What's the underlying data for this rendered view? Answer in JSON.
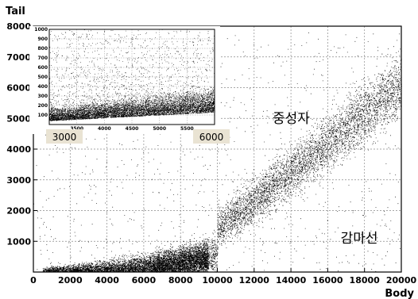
{
  "chart_data": [
    {
      "type": "scatter",
      "xlabel": "Body",
      "ylabel": "Tail",
      "xlim": [
        0,
        20000
      ],
      "ylim": [
        0,
        8000
      ],
      "x_ticks": [
        "0",
        "2000",
        "4000",
        "6000",
        "8000",
        "10000",
        "12000",
        "14000",
        "16000",
        "18000",
        "20000"
      ],
      "y_ticks": [
        "1000",
        "2000",
        "3000",
        "4000",
        "5000",
        "6000",
        "7000",
        "8000"
      ],
      "grid": true,
      "annotations": [
        {
          "text": "중성자",
          "x": 13000,
          "y": 4850
        },
        {
          "text": "감마선",
          "x": 16700,
          "y": 950
        }
      ],
      "range_labels": [
        {
          "text": "3000",
          "x": 3000
        },
        {
          "text": "6000",
          "x": 6000
        }
      ],
      "series": [
        {
          "label": "neutron band",
          "points": "x in [8000,20000], y ≈ 0.47*x - 3300 (from ~500 at 8000 to ~6000 at 20000)"
        },
        {
          "label": "gamma band",
          "points": "x in [0,9000], y ≈ 0.00001*(x-2000)^2 (from ~0 at 2000 to ~500 at 9000)"
        }
      ]
    },
    {
      "type": "scatter",
      "xlim": [
        3000,
        6000
      ],
      "ylim": [
        0,
        1000
      ],
      "x_ticks": [
        "3500",
        "4000",
        "4500",
        "5000",
        "5500"
      ],
      "y_ticks": [
        "100",
        "200",
        "300",
        "400",
        "500",
        "600",
        "700",
        "800",
        "900",
        "1000"
      ],
      "grid": true,
      "series": [
        {
          "label": "inset zoom",
          "points": "dense band y in [0,200], sparse points up to 1000"
        }
      ]
    }
  ]
}
